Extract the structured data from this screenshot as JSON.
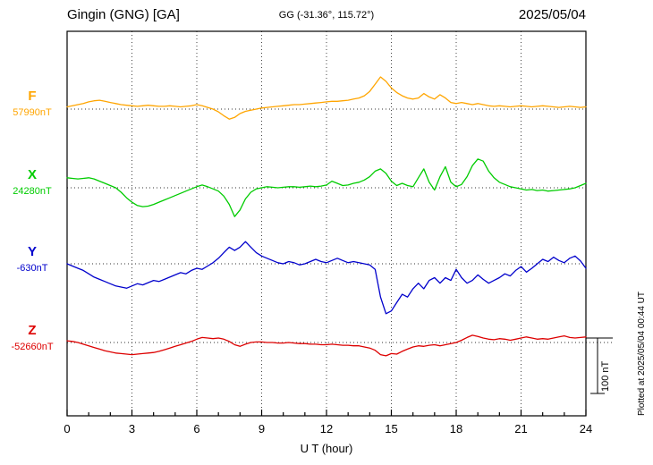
{
  "header": {
    "station_title": "Gingin (GNG)  [GA]",
    "coords": "GG (-31.36°, 115.72°)",
    "date": "2025/05/04"
  },
  "axes": {
    "x_label": "U T (hour)",
    "x_ticks": [
      0,
      3,
      6,
      9,
      12,
      15,
      18,
      21,
      24
    ],
    "x_range": [
      0,
      24
    ]
  },
  "trace_labels": [
    {
      "letter": "F",
      "value": "57990nT",
      "color": "#FFA500"
    },
    {
      "letter": "X",
      "value": "24280nT",
      "color": "#00CC00"
    },
    {
      "letter": "Y",
      "value": "-630nT",
      "color": "#0000CC"
    },
    {
      "letter": "Z",
      "value": "-52660nT",
      "color": "#DD0000"
    }
  ],
  "scale_bar": {
    "label": "100 nT",
    "nT": 100
  },
  "footer_note": "Plotted at 2025/05/04 00:44 UT",
  "chart_data": {
    "type": "line",
    "title": "Gingin (GNG) [GA] magnetogram 2025/05/04",
    "xlabel": "U T (hour)",
    "x_range": [
      0,
      24
    ],
    "x_start": 0,
    "x_step": 0.25,
    "grid": "dotted, vertical every 3 h, dotted horizontal baseline per trace",
    "note": "offsets_nT are deviations from each trace baseline value (nT)",
    "series": [
      {
        "name": "F",
        "baseline_nT": 57990,
        "color": "#FFA500",
        "offsets_nT": [
          4,
          6,
          8,
          10,
          13,
          15,
          16,
          14,
          12,
          10,
          8,
          7,
          6,
          5,
          6,
          7,
          6,
          5,
          5,
          6,
          5,
          4,
          5,
          6,
          8,
          6,
          3,
          0,
          -5,
          -12,
          -18,
          -15,
          -8,
          -4,
          -2,
          0,
          2,
          3,
          4,
          5,
          6,
          7,
          8,
          8,
          9,
          10,
          11,
          12,
          13,
          14,
          14,
          15,
          16,
          18,
          20,
          24,
          32,
          45,
          58,
          50,
          38,
          30,
          24,
          20,
          18,
          20,
          28,
          22,
          18,
          26,
          20,
          12,
          10,
          12,
          10,
          8,
          10,
          8,
          6,
          5,
          6,
          5,
          4,
          5,
          6,
          5,
          4,
          5,
          6,
          5,
          4,
          3,
          4,
          5,
          4,
          3,
          4
        ]
      },
      {
        "name": "X",
        "baseline_nT": 24280,
        "color": "#00CC00",
        "offsets_nT": [
          18,
          17,
          16,
          17,
          18,
          16,
          12,
          8,
          4,
          0,
          -8,
          -18,
          -26,
          -32,
          -34,
          -33,
          -30,
          -26,
          -22,
          -18,
          -14,
          -10,
          -6,
          -2,
          2,
          5,
          2,
          -2,
          -6,
          -15,
          -30,
          -52,
          -40,
          -20,
          -8,
          -2,
          0,
          2,
          1,
          0,
          1,
          2,
          2,
          1,
          2,
          3,
          2,
          3,
          5,
          12,
          8,
          4,
          5,
          8,
          10,
          14,
          20,
          30,
          34,
          26,
          12,
          4,
          8,
          4,
          2,
          18,
          34,
          10,
          -4,
          20,
          38,
          10,
          2,
          6,
          20,
          40,
          52,
          48,
          30,
          18,
          10,
          6,
          2,
          0,
          -2,
          -4,
          -3,
          -5,
          -4,
          -6,
          -5,
          -4,
          -3,
          -2,
          0,
          4,
          8
        ]
      },
      {
        "name": "Y",
        "baseline_nT": -630,
        "color": "#0000CC",
        "offsets_nT": [
          0,
          -4,
          -8,
          -12,
          -18,
          -24,
          -28,
          -32,
          -36,
          -40,
          -42,
          -44,
          -40,
          -36,
          -38,
          -34,
          -30,
          -32,
          -28,
          -24,
          -20,
          -16,
          -18,
          -12,
          -8,
          -10,
          -4,
          2,
          10,
          20,
          30,
          24,
          30,
          40,
          30,
          20,
          14,
          10,
          6,
          2,
          0,
          4,
          2,
          -2,
          0,
          4,
          8,
          4,
          2,
          6,
          10,
          6,
          2,
          4,
          2,
          0,
          -2,
          -10,
          -60,
          -90,
          -85,
          -70,
          -55,
          -60,
          -45,
          -35,
          -45,
          -30,
          -25,
          -35,
          -25,
          -30,
          -10,
          -25,
          -35,
          -30,
          -20,
          -28,
          -35,
          -30,
          -25,
          -18,
          -22,
          -12,
          -5,
          -15,
          -8,
          0,
          8,
          4,
          12,
          6,
          2,
          10,
          14,
          5,
          -8
        ]
      },
      {
        "name": "Z",
        "baseline_nT": -52660,
        "color": "#DD0000",
        "offsets_nT": [
          3,
          2,
          0,
          -3,
          -6,
          -9,
          -12,
          -15,
          -17,
          -19,
          -20,
          -21,
          -22,
          -21,
          -20,
          -19,
          -18,
          -16,
          -13,
          -10,
          -7,
          -4,
          -1,
          2,
          6,
          9,
          8,
          7,
          8,
          6,
          2,
          -4,
          -7,
          -3,
          0,
          1,
          1,
          0,
          0,
          -1,
          -1,
          0,
          -1,
          -2,
          -2,
          -3,
          -3,
          -4,
          -4,
          -3,
          -4,
          -5,
          -5,
          -6,
          -6,
          -8,
          -10,
          -14,
          -22,
          -24,
          -20,
          -21,
          -16,
          -12,
          -8,
          -6,
          -7,
          -5,
          -4,
          -6,
          -4,
          -2,
          0,
          4,
          9,
          13,
          11,
          8,
          6,
          5,
          7,
          6,
          4,
          6,
          8,
          10,
          8,
          6,
          7,
          6,
          8,
          10,
          12,
          9,
          8,
          9,
          10
        ]
      }
    ]
  }
}
